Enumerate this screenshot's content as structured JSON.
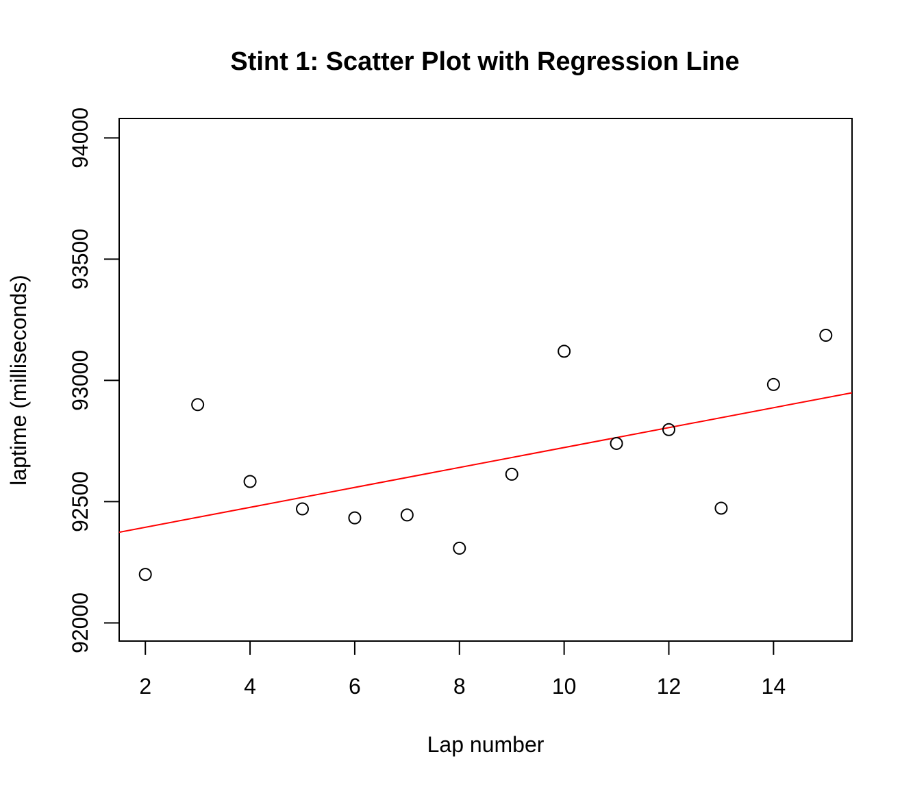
{
  "chart_data": {
    "type": "scatter",
    "title": "Stint 1: Scatter Plot with Regression Line",
    "xlabel": "Lap number",
    "ylabel": "laptime (milliseconds)",
    "xlim": [
      1.5,
      15.5
    ],
    "ylim": [
      91925,
      94080
    ],
    "x_ticks": [
      2,
      4,
      6,
      8,
      10,
      12,
      14
    ],
    "x_tick_labels": [
      "2",
      "4",
      "6",
      "8",
      "10",
      "12",
      "14"
    ],
    "y_ticks": [
      92000,
      92500,
      93000,
      93500,
      94000
    ],
    "y_tick_labels": [
      "92000",
      "92500",
      "93000",
      "93500",
      "94000"
    ],
    "grid": false,
    "series": [
      {
        "x": [
          2,
          3,
          4,
          5,
          6,
          7,
          8,
          9,
          10,
          11,
          12,
          13,
          14,
          15
        ],
        "y": [
          92200,
          92900,
          92583,
          92470,
          92433,
          92445,
          92308,
          92613,
          93120,
          92740,
          92797,
          92473,
          92983,
          93186
        ],
        "marker": "open-circle",
        "color": "#000000"
      }
    ],
    "regression_line": {
      "color": "#ff0000",
      "intercept": 92312,
      "slope": 41.1
    }
  }
}
